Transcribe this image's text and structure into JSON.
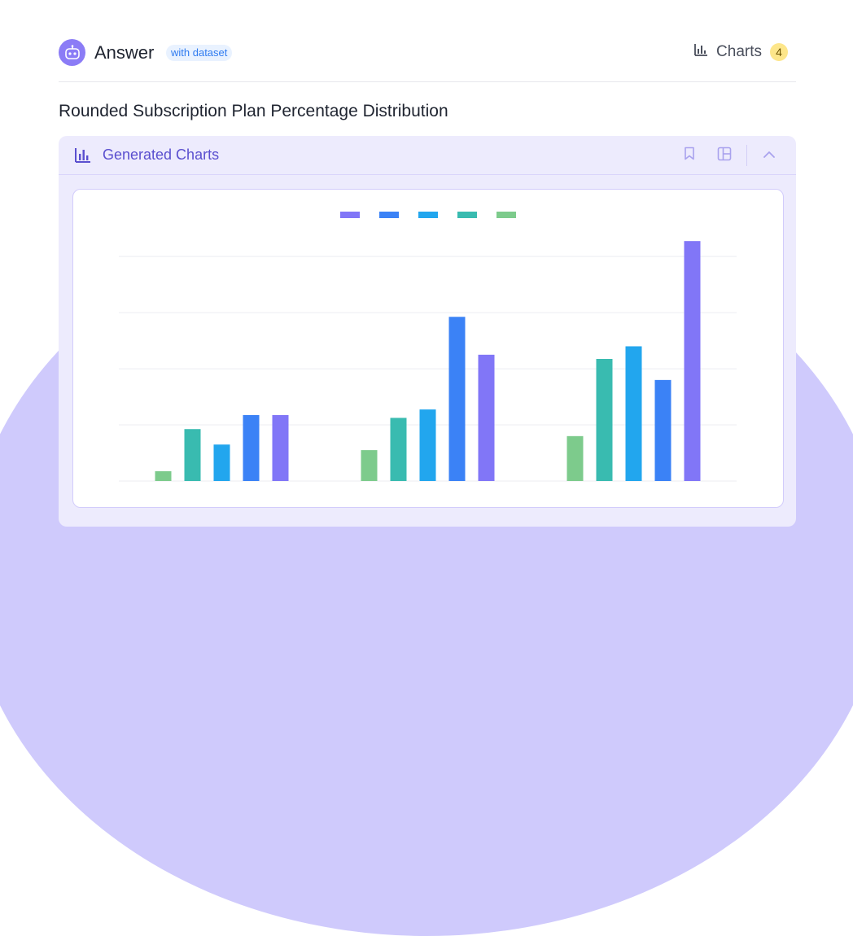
{
  "header": {
    "title": "Answer",
    "dataset_badge": "with dataset",
    "charts_label": "Charts",
    "charts_count": "4"
  },
  "page": {
    "title": "Rounded Subscription Plan Percentage Distribution"
  },
  "panel": {
    "title": "Generated Charts"
  },
  "icons": {
    "avatar": "robot-icon",
    "charts": "bar-chart-icon",
    "bookmark": "bookmark-icon",
    "layout": "layout-icon",
    "collapse": "chevron-up-icon"
  },
  "colors": {
    "accent": "#5a4fcf",
    "purple": "#8176f7",
    "blue": "#3b82f6",
    "sky": "#22a6ee",
    "teal": "#39bbb0",
    "green": "#7dcb8c"
  },
  "chart_data": {
    "type": "bar",
    "grid": true,
    "legend_position": "top-center",
    "ylim": [
      0,
      8.7
    ],
    "y_gridlines": [
      0,
      2,
      4,
      6,
      8
    ],
    "categories": [
      "",
      "",
      ""
    ],
    "series": [
      {
        "color": "#7dcb8c",
        "values": [
          0.35,
          1.1,
          1.6
        ]
      },
      {
        "color": "#39bbb0",
        "values": [
          1.85,
          2.25,
          4.35
        ]
      },
      {
        "color": "#22a6ee",
        "values": [
          1.3,
          2.55,
          4.8
        ]
      },
      {
        "color": "#3b82f6",
        "values": [
          2.35,
          5.85,
          3.6
        ]
      },
      {
        "color": "#8176f7",
        "values": [
          2.35,
          4.5,
          8.55
        ]
      }
    ],
    "legend_order": [
      4,
      3,
      2,
      1,
      0
    ]
  }
}
